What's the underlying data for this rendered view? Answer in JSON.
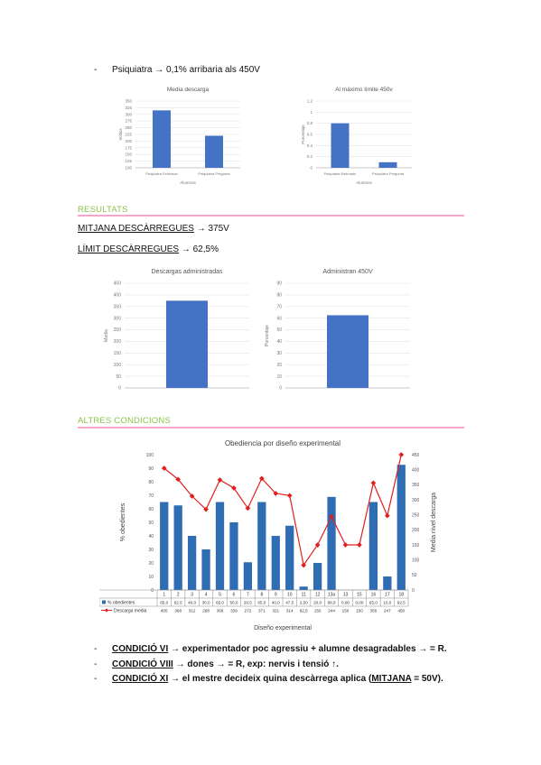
{
  "top_line": {
    "dash": "-",
    "text": "Psiquiatra → 0,1% arribaria als 450V"
  },
  "charts_top": [
    {
      "type": "bar",
      "title": "Media descarga",
      "ylabel": "Voltios",
      "xlabel": "Alumnos",
      "categories": [
        "Psiquiatra Estimado",
        "Psiquiatra Pregunta"
      ],
      "values": [
        315,
        220
      ],
      "ylim": [
        100,
        350
      ],
      "yticks": [
        "350",
        "325",
        "300",
        "275",
        "250",
        "225",
        "200",
        "175",
        "150",
        "125",
        "100"
      ]
    },
    {
      "type": "bar",
      "title": "Al máximo límite 450v",
      "ylabel": "Porcentaje",
      "xlabel": "Alumnos",
      "categories": [
        "Psiquiatra Estimado",
        "Psiquiatra Pregunta"
      ],
      "values": [
        0.8,
        0.1
      ],
      "ylim": [
        0,
        1.2
      ],
      "yticks": [
        "1.2",
        "1",
        "0.8",
        "0.6",
        "0.4",
        "0.2",
        "0"
      ]
    }
  ],
  "results": {
    "title": "RESULTATS",
    "line1_label": "MITJANA DESCÀRREGUES",
    "line1_value": "→ 375V",
    "line2_label": "LÍMIT DESCÀRREGUES",
    "line2_value": "→ 62,5%"
  },
  "charts_mid": [
    {
      "type": "bar",
      "title": "Descargas administradas",
      "ylabel": "Media",
      "categories": [
        ""
      ],
      "values": [
        375
      ],
      "ylim": [
        0,
        450
      ],
      "yticks": [
        "450",
        "400",
        "350",
        "300",
        "250",
        "200",
        "150",
        "100",
        "50",
        "0"
      ]
    },
    {
      "type": "bar",
      "title": "Administran 450V",
      "ylabel": "Porcentaje",
      "categories": [
        ""
      ],
      "values": [
        62.5
      ],
      "ylim": [
        0,
        90
      ],
      "yticks": [
        "90",
        "80",
        "70",
        "60",
        "50",
        "40",
        "30",
        "20",
        "10",
        "0"
      ]
    }
  ],
  "other": {
    "title": "ALTRES CONDICIONS"
  },
  "chart_data": {
    "type": "bar",
    "title": "Obediencia por diseño experimental",
    "xlabel": "Diseño experimental",
    "ylabel": "% obedientes",
    "y2label": "Media nivel descarga",
    "ylim": [
      0,
      100
    ],
    "y2lim": [
      0,
      450
    ],
    "yticks": [
      "100",
      "90",
      "80",
      "70",
      "60",
      "50",
      "40",
      "30",
      "20",
      "10",
      "0"
    ],
    "y2ticks": [
      "450",
      "400",
      "350",
      "300",
      "250",
      "200",
      "150",
      "100",
      "50",
      "0"
    ],
    "categories": [
      "1",
      "2",
      "3",
      "4",
      "5",
      "6",
      "7",
      "8",
      "9",
      "10",
      "11",
      "12",
      "13a",
      "13",
      "15",
      "16",
      "17",
      "18"
    ],
    "series": [
      {
        "name": "% obedientes",
        "type": "bar",
        "values": [
          65,
          62.5,
          40,
          30,
          65,
          50,
          20.5,
          65,
          40,
          47.5,
          2.5,
          20,
          68.8,
          0,
          0,
          65,
          10,
          92.5
        ],
        "labels": [
          "65,0",
          "62,5",
          "40,0",
          "30,0",
          "65,0",
          "50,0",
          "20,5",
          "65,0",
          "40,0",
          "47,5",
          "2,50",
          "20,0",
          "68,8",
          "0,00",
          "0,00",
          "65,0",
          "10,0",
          "92,5"
        ]
      },
      {
        "name": "Descarga media",
        "type": "line",
        "values": [
          405,
          368,
          312,
          268,
          366,
          339,
          272,
          371,
          321,
          314,
          82.5,
          150,
          244,
          150,
          150,
          356,
          247,
          450
        ],
        "labels": [
          "405",
          "368",
          "312",
          "268",
          "366",
          "339",
          "272",
          "371",
          "321",
          "314",
          "82,5",
          "150",
          "244",
          "150",
          "150",
          "356",
          "247",
          "450"
        ]
      }
    ],
    "colors": {
      "bar": "#2e6db4",
      "line": "#e02020"
    }
  },
  "conditions": [
    {
      "dash": "-",
      "label": "CONDICIÓ VI",
      "text": "→ experimentador poc agressiu + alumne desagradables → = R."
    },
    {
      "dash": "-",
      "label": "CONDICIÓ VIII",
      "text": "→ dones → = R, exp: nervis i tensió ↑."
    },
    {
      "dash": "-",
      "label": "CONDICIÓ XI",
      "text_a": "→ el mestre decideix quina descàrrega aplica (",
      "inner": "MITJANA",
      "text_b": " = 50V)."
    }
  ]
}
